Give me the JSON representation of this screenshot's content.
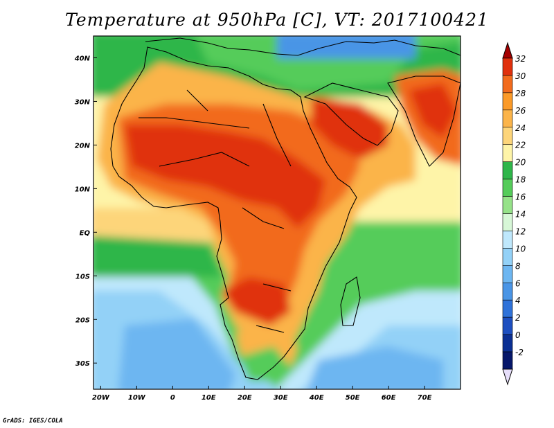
{
  "title": "Temperature at 950hPa [C], VT: 2017100421",
  "credit": "GrADS: IGES/COLA",
  "map": {
    "lon_range": [
      -22,
      80
    ],
    "lat_range": [
      -36,
      45
    ],
    "lon_ticks": [
      {
        "value": -20,
        "label": "20W"
      },
      {
        "value": -10,
        "label": "10W"
      },
      {
        "value": 0,
        "label": "0"
      },
      {
        "value": 10,
        "label": "10E"
      },
      {
        "value": 20,
        "label": "20E"
      },
      {
        "value": 30,
        "label": "30E"
      },
      {
        "value": 40,
        "label": "40E"
      },
      {
        "value": 50,
        "label": "50E"
      },
      {
        "value": 60,
        "label": "60E"
      },
      {
        "value": 70,
        "label": "70E"
      }
    ],
    "lat_ticks": [
      {
        "value": 40,
        "label": "40N"
      },
      {
        "value": 30,
        "label": "30N"
      },
      {
        "value": 20,
        "label": "20N"
      },
      {
        "value": 10,
        "label": "10N"
      },
      {
        "value": 0,
        "label": "EQ"
      },
      {
        "value": -10,
        "label": "10S"
      },
      {
        "value": -20,
        "label": "20S"
      },
      {
        "value": -30,
        "label": "30S"
      }
    ]
  },
  "colorbar": {
    "labels": [
      "32",
      "30",
      "28",
      "26",
      "24",
      "22",
      "20",
      "18",
      "16",
      "14",
      "12",
      "10",
      "8",
      "6",
      "4",
      "2",
      "0",
      "-2"
    ],
    "colors": [
      "#a50000",
      "#e0300d",
      "#f26b1d",
      "#fb9a28",
      "#fbb44a",
      "#fdd57a",
      "#fef4a8",
      "#2fb64a",
      "#55cc5a",
      "#96e289",
      "#d7f7d7",
      "#bfe8fc",
      "#93d1f7",
      "#6db6f1",
      "#4a95e6",
      "#2f72d9",
      "#1d4fc0",
      "#0b2f93",
      "#06176a",
      "#e6defa"
    ]
  }
}
